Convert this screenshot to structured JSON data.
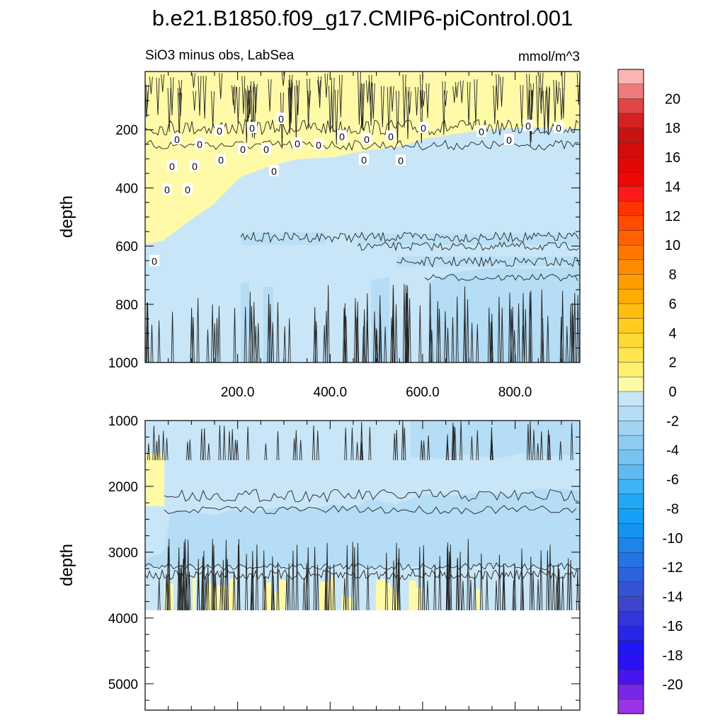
{
  "chart_data": {
    "type": "heatmap",
    "title": "b.e21.B1850.f09_g17.CMIP6-piControl.001",
    "subtitle_left": "SiO3 minus obs, LabSea",
    "subtitle_right": "mmol/m^3",
    "panels": [
      {
        "name": "upper",
        "ylabel": "depth",
        "ylim": [
          0,
          1000
        ],
        "y_ticks": [
          "200",
          "400",
          "600",
          "800",
          "1000"
        ],
        "y_tick_values": [
          200,
          400,
          600,
          800,
          1000
        ],
        "xlim": [
          0,
          940
        ],
        "x_ticks": [
          "200.0",
          "400.0",
          "600.0",
          "800.0"
        ],
        "x_tick_values": [
          200,
          400,
          600,
          800
        ],
        "contour_label": "0",
        "contour_label_count": 27
      },
      {
        "name": "lower",
        "ylabel": "depth",
        "ylim": [
          1000,
          5400
        ],
        "y_ticks": [
          "1000",
          "2000",
          "3000",
          "4000",
          "5000"
        ],
        "y_tick_values": [
          1000,
          2000,
          3000,
          4000,
          5000
        ],
        "xlim": [
          0,
          940
        ],
        "data_bottom_depth": 3870
      }
    ],
    "colorbar": {
      "labels": [
        "20",
        "18",
        "16",
        "14",
        "12",
        "10",
        "8",
        "6",
        "4",
        "2",
        "0",
        "-2",
        "-4",
        "-6",
        "-8",
        "-10",
        "-12",
        "-14",
        "-16",
        "-18",
        "-20"
      ],
      "levels_max": 22,
      "levels_min": -22,
      "step": 1,
      "colors_top_to_bottom": [
        "#fbb4b4",
        "#f07b7b",
        "#e04545",
        "#d42222",
        "#c81313",
        "#d50c0c",
        "#e30808",
        "#f00606",
        "#ff1a1a",
        "#ff3300",
        "#ff4a00",
        "#ff6000",
        "#ff7700",
        "#ff8b00",
        "#ff9d00",
        "#ffad00",
        "#ffbd10",
        "#ffcc20",
        "#ffd935",
        "#ffe650",
        "#fff070",
        "#fffaa8",
        "#c8e6f7",
        "#b5ddf5",
        "#a2d4f2",
        "#8ecbf0",
        "#78c2f0",
        "#5fbaf2",
        "#3fb3f5",
        "#1ea9f7",
        "#14a0f7",
        "#1493f2",
        "#1c84eb",
        "#2474e4",
        "#2c63dc",
        "#3354d4",
        "#3c45cc",
        "#3535dc",
        "#2a26e8",
        "#1f16f2",
        "#2a10f2",
        "#4a14ee",
        "#7a26e8",
        "#9a33e5"
      ]
    }
  }
}
